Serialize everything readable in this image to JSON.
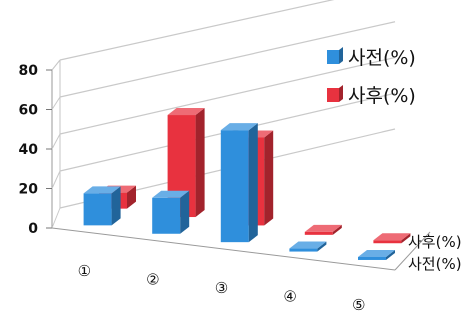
{
  "chart_data": {
    "type": "bar",
    "three_d": true,
    "categories": [
      "①",
      "②",
      "③",
      "④",
      "⑤"
    ],
    "series": [
      {
        "name": "사전(%)",
        "color": "#2f8fdc",
        "values": [
          16,
          18,
          56,
          1,
          1
        ]
      },
      {
        "name": "사후(%)",
        "color": "#e8323f",
        "values": [
          8,
          51,
          44,
          1,
          1
        ]
      }
    ],
    "depth_labels": [
      "사후(%)",
      "사전(%)"
    ],
    "ylim": [
      0,
      80
    ],
    "yticks": [
      0,
      20,
      40,
      60,
      80
    ],
    "grid": true,
    "legend_position": "right",
    "title": "",
    "xlabel": "",
    "ylabel": ""
  }
}
